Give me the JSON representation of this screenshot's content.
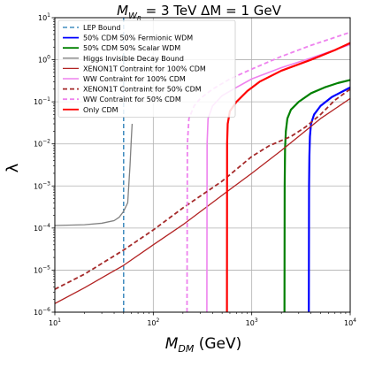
{
  "chart_data": {
    "type": "line",
    "title": "M_{W_R} = 3 TeV  ΔM = 1 GeV",
    "title_parts": {
      "m": "M",
      "sub": "W",
      "subsub": "R",
      "rest": " = 3 TeV  ΔM = 1 GeV"
    },
    "xlabel": {
      "symbol": "M",
      "sub": "DM",
      "unit": " (GeV)"
    },
    "ylabel": "λ",
    "x_scale": "log",
    "y_scale": "log",
    "xlim": [
      10,
      10000
    ],
    "ylim": [
      1e-06,
      10
    ],
    "x_ticks": [
      {
        "value": 10,
        "base": "10",
        "exp": "1"
      },
      {
        "value": 100,
        "base": "10",
        "exp": "2"
      },
      {
        "value": 1000,
        "base": "10",
        "exp": "3"
      },
      {
        "value": 10000,
        "base": "10",
        "exp": "4"
      }
    ],
    "y_ticks": [
      {
        "value": 1e-06,
        "base": "10",
        "exp": "−6"
      },
      {
        "value": 1e-05,
        "base": "10",
        "exp": "−5"
      },
      {
        "value": 0.0001,
        "base": "10",
        "exp": "−4"
      },
      {
        "value": 0.001,
        "base": "10",
        "exp": "−3"
      },
      {
        "value": 0.01,
        "base": "10",
        "exp": "−2"
      },
      {
        "value": 0.1,
        "base": "10",
        "exp": "−1"
      },
      {
        "value": 1,
        "base": "10",
        "exp": "0"
      },
      {
        "value": 10,
        "base": "10",
        "exp": "1"
      }
    ],
    "grid": true,
    "legend_position": "top-left",
    "series": [
      {
        "name": "LEP Bound",
        "color": "#1f77b4",
        "dash": "dashed",
        "width": 1.3,
        "points": [
          [
            50,
            1e-06
          ],
          [
            50,
            10
          ]
        ]
      },
      {
        "name": "50% CDM 50% Fermionic WDM",
        "color": "#0000ff",
        "dash": "solid",
        "width": 2.2,
        "points": [
          [
            3800,
            1e-06
          ],
          [
            3820,
            0.001
          ],
          [
            3850,
            0.005
          ],
          [
            3900,
            0.015
          ],
          [
            4000,
            0.03
          ],
          [
            4300,
            0.05
          ],
          [
            5000,
            0.08
          ],
          [
            6500,
            0.13
          ],
          [
            8500,
            0.18
          ],
          [
            10000,
            0.22
          ]
        ]
      },
      {
        "name": "50% CDM 50% Scalar WDM",
        "color": "#008000",
        "dash": "solid",
        "width": 2.2,
        "points": [
          [
            2150,
            1e-06
          ],
          [
            2160,
            0.001
          ],
          [
            2180,
            0.008
          ],
          [
            2220,
            0.02
          ],
          [
            2300,
            0.04
          ],
          [
            2500,
            0.065
          ],
          [
            3000,
            0.1
          ],
          [
            4000,
            0.16
          ],
          [
            5500,
            0.22
          ],
          [
            7500,
            0.28
          ],
          [
            10000,
            0.33
          ]
        ]
      },
      {
        "name": "Higgs Invisible Decay Bound",
        "color": "#808080",
        "dash": "solid",
        "width": 1.3,
        "points": [
          [
            10,
            0.000115
          ],
          [
            20,
            0.00012
          ],
          [
            30,
            0.00013
          ],
          [
            40,
            0.00015
          ],
          [
            45,
            0.00018
          ],
          [
            50,
            0.00025
          ],
          [
            55,
            0.0004
          ],
          [
            58,
            0.003
          ],
          [
            60,
            0.015
          ],
          [
            61,
            0.03
          ]
        ]
      },
      {
        "name": "XENON1T Contraint for 100% CDM",
        "color": "#b22222",
        "dash": "solid",
        "width": 1.3,
        "points": [
          [
            10,
            1.6e-06
          ],
          [
            20,
            3.8e-06
          ],
          [
            50,
            1.3e-05
          ],
          [
            100,
            4e-05
          ],
          [
            200,
            0.00012
          ],
          [
            500,
            0.0006
          ],
          [
            1000,
            0.002
          ],
          [
            2000,
            0.007
          ],
          [
            5000,
            0.04
          ],
          [
            10000,
            0.12
          ]
        ]
      },
      {
        "name": "WW Contraint for 100% CDM",
        "color": "#ee82ee",
        "dash": "solid",
        "width": 1.6,
        "points": [
          [
            350,
            1e-06
          ],
          [
            352,
            0.01
          ],
          [
            360,
            0.04
          ],
          [
            400,
            0.08
          ],
          [
            500,
            0.14
          ],
          [
            700,
            0.22
          ],
          [
            1000,
            0.35
          ],
          [
            2000,
            0.65
          ],
          [
            4000,
            1.1
          ],
          [
            10000,
            2.3
          ]
        ]
      },
      {
        "name": "XENON1T Contraint for 50% CDM",
        "color": "#a52a2a",
        "dash": "dashed",
        "width": 1.8,
        "points": [
          [
            10,
            3.5e-06
          ],
          [
            20,
            8e-06
          ],
          [
            50,
            3e-05
          ],
          [
            100,
            9e-05
          ],
          [
            200,
            0.0003
          ],
          [
            500,
            0.0013
          ],
          [
            1000,
            0.005
          ],
          [
            1500,
            0.009
          ],
          [
            2000,
            0.012
          ],
          [
            2500,
            0.015
          ],
          [
            3500,
            0.025
          ],
          [
            5000,
            0.05
          ],
          [
            7000,
            0.11
          ],
          [
            10000,
            0.2
          ]
        ]
      },
      {
        "name": "WW Contraint for 50% CDM",
        "color": "#ee82ee",
        "dash": "dashed",
        "width": 1.8,
        "points": [
          [
            220,
            1e-06
          ],
          [
            222,
            0.01
          ],
          [
            230,
            0.04
          ],
          [
            260,
            0.08
          ],
          [
            300,
            0.12
          ],
          [
            400,
            0.2
          ],
          [
            600,
            0.35
          ],
          [
            1000,
            0.6
          ],
          [
            2000,
            1.2
          ],
          [
            4000,
            2.2
          ],
          [
            10000,
            4.5
          ]
        ]
      },
      {
        "name": "Only CDM",
        "color": "#ff0000",
        "dash": "solid",
        "width": 2.2,
        "points": [
          [
            560,
            1e-06
          ],
          [
            562,
            0.01
          ],
          [
            570,
            0.03
          ],
          [
            600,
            0.06
          ],
          [
            700,
            0.1
          ],
          [
            900,
            0.18
          ],
          [
            1200,
            0.3
          ],
          [
            2000,
            0.55
          ],
          [
            4000,
            1.0
          ],
          [
            7000,
            1.7
          ],
          [
            10000,
            2.5
          ]
        ]
      }
    ]
  }
}
